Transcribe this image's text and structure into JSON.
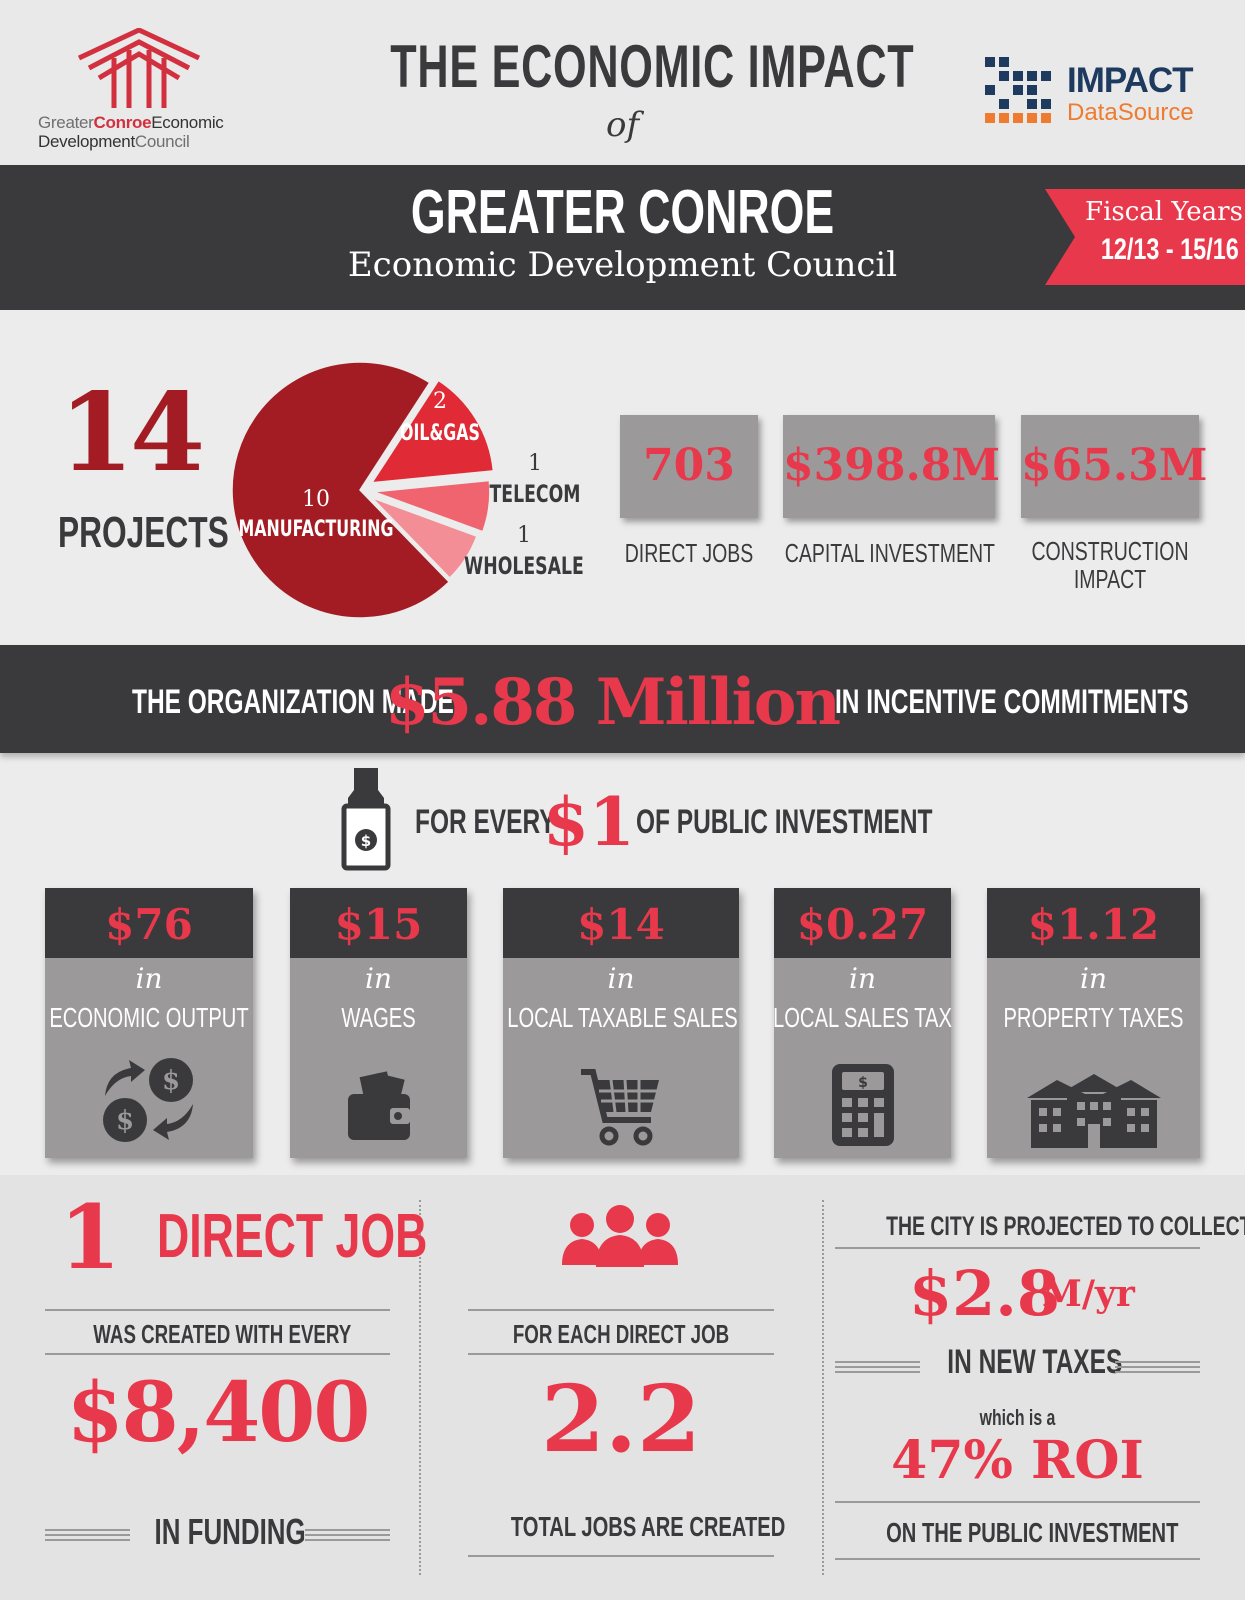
{
  "header": {
    "title": "THE ECONOMIC IMPACT",
    "title_of": "of",
    "logo_left": {
      "w1": "Greater",
      "w2": "Conroe",
      "w3": "Economic",
      "w4": "Development",
      "w5": "Council"
    },
    "logo_right": {
      "w1": "IMPACT",
      "w2": "DataSource"
    }
  },
  "banner": {
    "org_name": "GREATER CONROE",
    "org_sub": "Economic Development Council",
    "fiscal_label": "Fiscal Years",
    "fiscal_range": "12/13 - 15/16"
  },
  "projects": {
    "count": "14",
    "label": "PROJECTS"
  },
  "chart_data": {
    "type": "pie",
    "slices": [
      {
        "name": "MANUFACTURING",
        "value": 10,
        "color": "#a31c24"
      },
      {
        "name": "OIL&GAS",
        "value": 2,
        "color": "#e02a36"
      },
      {
        "name": "TELECOM",
        "value": 1,
        "color": "#f06470"
      },
      {
        "name": "WHOLESALE",
        "value": 1,
        "color": "#f38e97"
      }
    ]
  },
  "stats": [
    {
      "value": "703",
      "label": "DIRECT JOBS"
    },
    {
      "value": "$398.8M",
      "label": "CAPITAL INVESTMENT"
    },
    {
      "value": "$65.3M",
      "label": "CONSTRUCTION",
      "label2": "IMPACT"
    }
  ],
  "incentive": {
    "pre": "THE ORGANIZATION MADE",
    "amount": "$5.88 Million",
    "post": "IN INCENTIVE COMMITMENTS"
  },
  "every": {
    "pre": "FOR EVERY",
    "amount": "$1",
    "post": "OF PUBLIC INVESTMENT"
  },
  "benefits": [
    {
      "value": "$76",
      "in": "in",
      "label": "ECONOMIC OUTPUT",
      "icon": "exchange-icon"
    },
    {
      "value": "$15",
      "in": "in",
      "label": "WAGES",
      "icon": "wallet-icon"
    },
    {
      "value": "$14",
      "in": "in",
      "label": "LOCAL TAXABLE SALES",
      "icon": "cart-icon"
    },
    {
      "value": "$0.27",
      "in": "in",
      "label": "LOCAL SALES TAX",
      "icon": "calculator-icon"
    },
    {
      "value": "$1.12",
      "in": "in",
      "label": "PROPERTY TAXES",
      "icon": "building-icon"
    }
  ],
  "bottom": {
    "col1": {
      "num": "1",
      "title": "DIRECT JOB",
      "sub": "WAS CREATED WITH EVERY",
      "amount": "$8,400",
      "foot": "IN FUNDING"
    },
    "col2": {
      "sub": "FOR EACH DIRECT JOB",
      "amount": "2.2",
      "foot": "TOTAL JOBS ARE CREATED",
      "icon": "people-icon"
    },
    "col3": {
      "head": "THE CITY IS PROJECTED TO COLLECT",
      "amount": "$2.8",
      "unit": "M/yr",
      "mid": "IN NEW TAXES",
      "which": "which is a",
      "roi": "47% ROI",
      "foot": "ON THE PUBLIC INVESTMENT"
    }
  }
}
